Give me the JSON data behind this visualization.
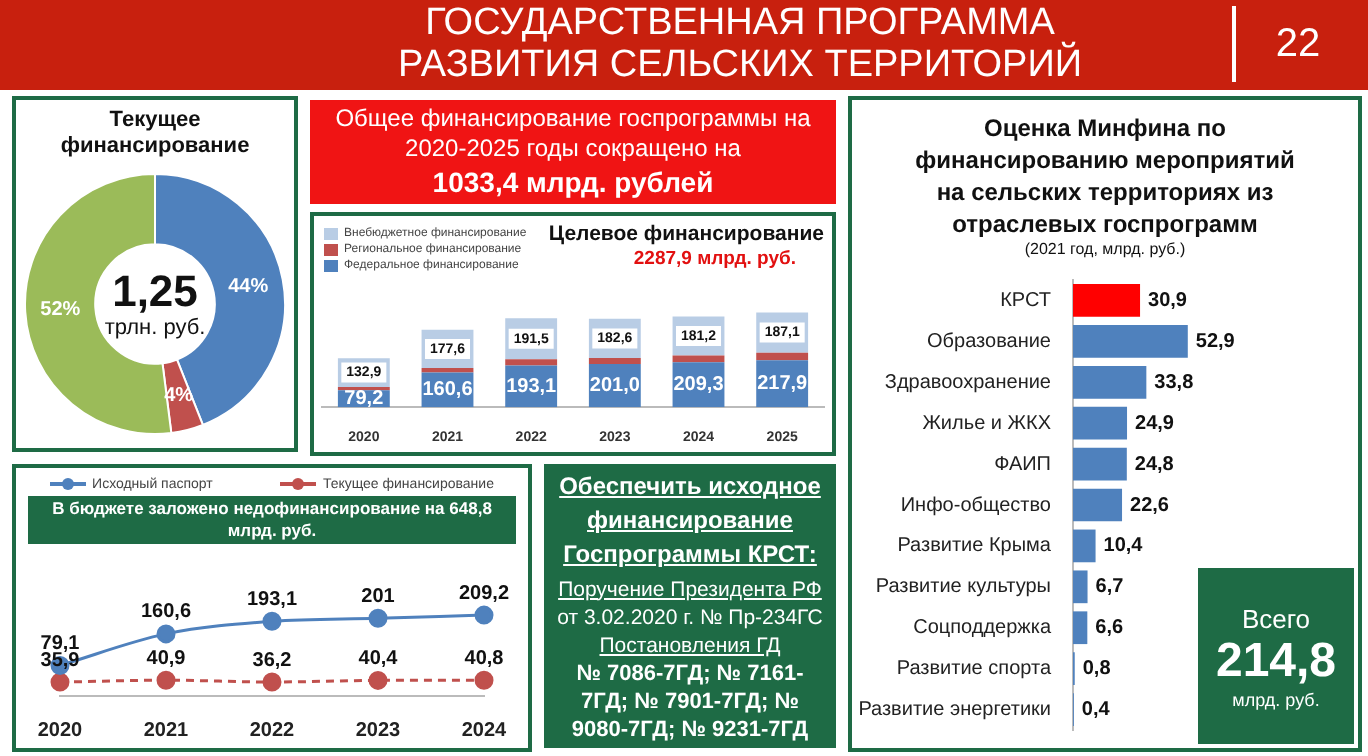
{
  "chart_data": [
    {
      "type": "other",
      "title": "ГОСУДАРСТВЕННАЯ ПРОГРАММА РАЗВИТИЯ СЕЛЬСКИХ ТЕРРИТОРИЙ",
      "annotations": [
        "22"
      ]
    },
    {
      "type": "donut",
      "title": "Текущее финансирование",
      "categories": [
        null,
        null,
        null
      ],
      "values": [
        44,
        4,
        52
      ],
      "colors": [
        "#4f81bd",
        "#c0504d",
        "#9bbb59"
      ],
      "value_labels": [
        "44%",
        "4%",
        "52%"
      ],
      "annotations": [
        "1,25",
        "трлн. руб."
      ]
    },
    {
      "type": "other",
      "annotations": [
        "Общее финансирование госпрограммы на 2020-2025 годы сокращено на",
        "1033,4 млрд. рублей"
      ]
    },
    {
      "type": "bar",
      "stacked": true,
      "title": "Целевое финансирование",
      "subtitle": "2287,9 млрд. руб.",
      "legend": "top left",
      "categories": [
        "2020",
        "2021",
        "2022",
        "2023",
        "2024",
        "2025"
      ],
      "series": [
        {
          "name": "Федеральное финансирование",
          "color": "#4f81bd",
          "values": [
            79.2,
            160.6,
            193.1,
            201.0,
            209.3,
            217.9
          ],
          "value_labels": [
            "79,2",
            "160,6",
            "193,1",
            "201,0",
            "209,3",
            "217,9"
          ]
        },
        {
          "name": "Региональное финансирование",
          "color": "#c0504d",
          "values": [
            15,
            21,
            29,
            27,
            31,
            35
          ]
        },
        {
          "name": "Внебюджетное финансирование",
          "color": "#b9cde5",
          "values": [
            132.9,
            177.6,
            191.5,
            182.6,
            181.2,
            187.1
          ],
          "value_labels": [
            "132,9",
            "177,6",
            "191,5",
            "182,6",
            "181,2",
            "187,1"
          ]
        }
      ]
    },
    {
      "type": "bar",
      "orientation": "horizontal",
      "title": "Оценка Минфина по финансированию мероприятий на сельских территориях из отраслевых госпрограмм",
      "subtitle": "(2021 год, млрд. руб.)",
      "categories": [
        "КРСТ",
        "Образование",
        "Здравоохранение",
        "Жилье и ЖКХ",
        "ФАИП",
        "Инфо-общество",
        "Развитие Крыма",
        "Развитие культуры",
        "Соцподдержка",
        "Развитие спорта",
        "Развитие энергетики"
      ],
      "values": [
        30.9,
        52.9,
        33.8,
        24.9,
        24.8,
        22.6,
        10.4,
        6.7,
        6.6,
        0.8,
        0.4
      ],
      "colors": [
        "#ff0000",
        "#4f81bd",
        "#4f81bd",
        "#4f81bd",
        "#4f81bd",
        "#4f81bd",
        "#4f81bd",
        "#4f81bd",
        "#4f81bd",
        "#4f81bd",
        "#4f81bd"
      ],
      "value_labels": [
        "30,9",
        "52,9",
        "33,8",
        "24,9",
        "24,8",
        "22,6",
        "10,4",
        "6,7",
        "6,6",
        "0,8",
        "0,4"
      ],
      "annotations": [
        "Всего",
        "214,8",
        "млрд. руб."
      ]
    },
    {
      "type": "line",
      "title": "В бюджете заложено недофинансирование на 648,8 млрд. руб.",
      "legend": "top",
      "marker": "circle",
      "categories": [
        "2020",
        "2021",
        "2022",
        "2023",
        "2024"
      ],
      "series": [
        {
          "name": "Исходный паспорт",
          "color": "#4f81bd",
          "line_style": "solid",
          "values": [
            79.1,
            160.6,
            193.1,
            201,
            209.2
          ],
          "value_labels": [
            "79,1",
            "160,6",
            "193,1",
            "201",
            "209,2"
          ]
        },
        {
          "name": "Текущее финансирование",
          "color": "#c0504d",
          "line_style": "dashed",
          "values": [
            35.9,
            40.9,
            36.2,
            40.4,
            40.8
          ],
          "value_labels": [
            "35,9",
            "40,9",
            "36,2",
            "40,4",
            "40,8"
          ]
        }
      ]
    },
    {
      "type": "other",
      "annotations": [
        "Обеспечить исходное финансирование Госпрограммы КРСТ:",
        "Поручение Президента РФ",
        "от 3.02.2020 г. № Пр-234ГС",
        "Постановления ГД",
        "№ 7086-7ГД; № 7161-7ГД; № 7901-7ГД; № 9080-7ГД; № 9231-7ГД"
      ]
    }
  ]
}
